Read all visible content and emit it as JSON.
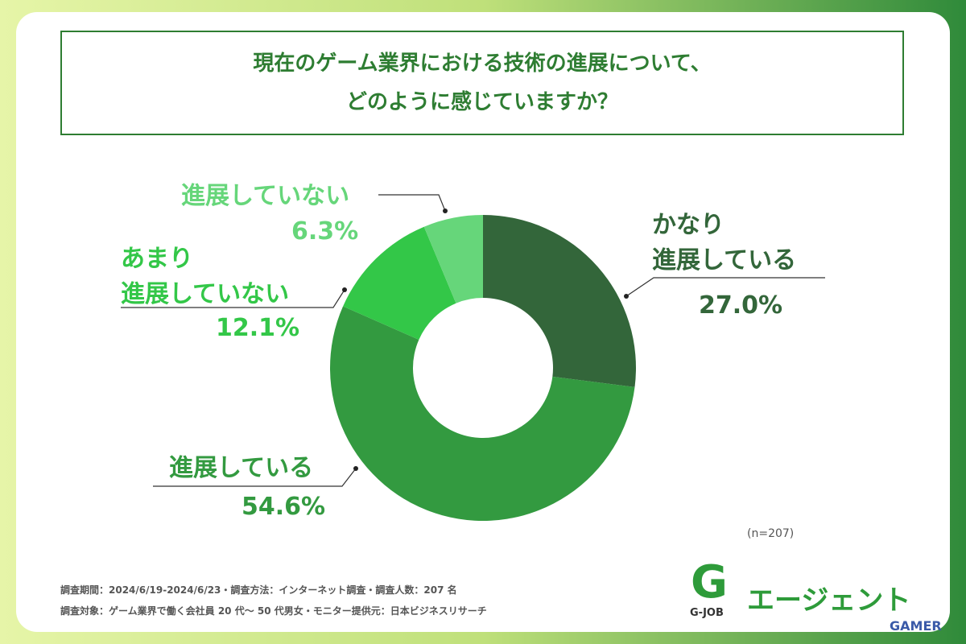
{
  "chart_data": {
    "type": "donut",
    "title": "現在のゲーム業界における技術の進展について、\nどのように感じていますか？",
    "categories": [
      "かなり\n進展している",
      "進展している",
      "あまり\n進展していない",
      "進展していない"
    ],
    "values": [
      27.0,
      54.6,
      12.1,
      6.3
    ],
    "value_labels": [
      "27.0%",
      "54.6%",
      "12.1%",
      "6.3%"
    ],
    "colors": [
      "#33663a",
      "#339a40",
      "#33c748",
      "#66d67a"
    ],
    "note": "(n=207)"
  },
  "footer": {
    "lines": [
      "調査期間：2024/6/19-2024/6/23・調査方法：インターネット調査・調査人数：207 名",
      "調査対象：ゲーム業界で働く会社員 20 代〜 50 代男女・モニター提供元：日本ビジネスリサーチ"
    ],
    "logo_mark": "G",
    "logo_caption": "G-JOB",
    "logo_text": "エージェント",
    "watermark": "GAMER"
  }
}
